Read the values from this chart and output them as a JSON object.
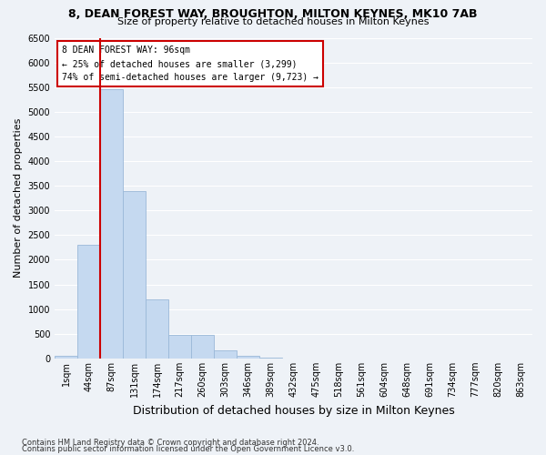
{
  "title1": "8, DEAN FOREST WAY, BROUGHTON, MILTON KEYNES, MK10 7AB",
  "title2": "Size of property relative to detached houses in Milton Keynes",
  "xlabel": "Distribution of detached houses by size in Milton Keynes",
  "ylabel": "Number of detached properties",
  "footer1": "Contains HM Land Registry data © Crown copyright and database right 2024.",
  "footer2": "Contains public sector information licensed under the Open Government Licence v3.0.",
  "annotation_title": "8 DEAN FOREST WAY: 96sqm",
  "annotation_line1": "← 25% of detached houses are smaller (3,299)",
  "annotation_line2": "74% of semi-detached houses are larger (9,723) →",
  "bar_color": "#c5d9f0",
  "bar_edge_color": "#9ab8d8",
  "line_color": "#cc0000",
  "annotation_box_color": "#cc0000",
  "ylim": [
    0,
    6500
  ],
  "yticks": [
    0,
    500,
    1000,
    1500,
    2000,
    2500,
    3000,
    3500,
    4000,
    4500,
    5000,
    5500,
    6000,
    6500
  ],
  "categories": [
    "1sqm",
    "44sqm",
    "87sqm",
    "131sqm",
    "174sqm",
    "217sqm",
    "260sqm",
    "303sqm",
    "346sqm",
    "389sqm",
    "432sqm",
    "475sqm",
    "518sqm",
    "561sqm",
    "604sqm",
    "648sqm",
    "691sqm",
    "734sqm",
    "777sqm",
    "820sqm",
    "863sqm"
  ],
  "values": [
    60,
    2300,
    5450,
    3400,
    1200,
    480,
    480,
    160,
    60,
    15,
    5,
    2,
    1,
    0,
    0,
    0,
    0,
    0,
    0,
    0,
    0
  ],
  "property_bar_index": 2,
  "bg_color": "#eef2f7",
  "grid_color": "#ffffff",
  "title_fontsize": 9,
  "subtitle_fontsize": 8,
  "axis_label_fontsize": 8,
  "tick_fontsize": 7,
  "footer_fontsize": 6
}
